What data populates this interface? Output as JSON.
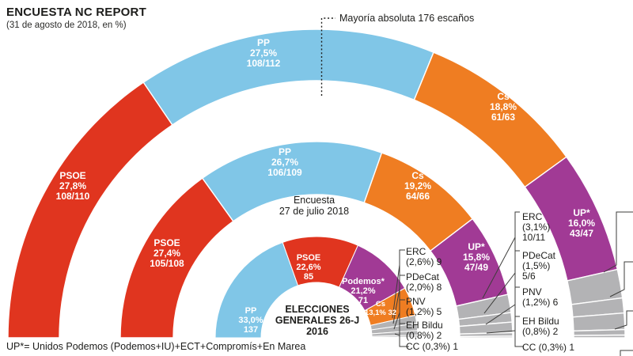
{
  "title": "ENCUESTA NC REPORT",
  "subtitle": "(31 de agosto de 2018, en %)",
  "majority_label": "Mayoría absoluta 176 escaños",
  "footnote": "UP*= Unidos Podemos (Podemos+IU)+ECT+Compromís+En Marea",
  "colors": {
    "psoe": "#e0351f",
    "pp": "#80c6e7",
    "cs": "#ef7d22",
    "up": "#a13a95",
    "podemos": "#a13a95",
    "minor": "#b3b3b5",
    "text": "#1d1d1b"
  },
  "chart_data": {
    "type": "pie",
    "variant": "hemicycle_half_donut",
    "total_seats": 350,
    "majority_seats": 176,
    "rings": [
      {
        "id": "poll-31-agosto",
        "name": "Encuesta 31 de agosto de 2018",
        "position": "outer",
        "center_label_lines": [],
        "segments": [
          {
            "party": "PSOE",
            "pct_label": "27,8%",
            "pct": 27.8,
            "seats_label": "108/110",
            "seats": 109,
            "color": "psoe"
          },
          {
            "party": "PP",
            "pct_label": "27,5%",
            "pct": 27.5,
            "seats_label": "108/112",
            "seats": 110,
            "color": "pp"
          },
          {
            "party": "Cs",
            "pct_label": "18,8%",
            "pct": 18.8,
            "seats_label": "61/63",
            "seats": 62,
            "color": "cs"
          },
          {
            "party": "UP*",
            "pct_label": "16,0%",
            "pct": 16.0,
            "seats_label": "43/47",
            "seats": 45,
            "color": "up"
          },
          {
            "party": "ERC",
            "pct_label": null,
            "seats_label": null,
            "seats": 10.5,
            "color": "minor"
          },
          {
            "party": "PDeCat",
            "pct_label": null,
            "seats_label": null,
            "seats": 5.5,
            "color": "minor"
          },
          {
            "party": "PNV",
            "pct_label": null,
            "seats_label": null,
            "seats": 6,
            "color": "minor"
          },
          {
            "party": "EH Bildu",
            "pct_label": null,
            "seats_label": null,
            "seats": 2,
            "color": "minor"
          },
          {
            "party": "CC",
            "pct_label": null,
            "seats_label": null,
            "seats": 1,
            "color": "minor"
          }
        ]
      },
      {
        "id": "poll-27-julio",
        "name": "Encuesta 27 de julio 2018",
        "position": "middle",
        "center_label_lines": [
          "Encuesta",
          "27 de julio 2018"
        ],
        "segments": [
          {
            "party": "PSOE",
            "pct_label": "27,4%",
            "pct": 27.4,
            "seats_label": "105/108",
            "seats": 106.5,
            "color": "psoe"
          },
          {
            "party": "PP",
            "pct_label": "26,7%",
            "pct": 26.7,
            "seats_label": "106/109",
            "seats": 107.5,
            "color": "pp"
          },
          {
            "party": "Cs",
            "pct_label": "19,2%",
            "pct": 19.2,
            "seats_label": "64/66",
            "seats": 65,
            "color": "cs"
          },
          {
            "party": "UP*",
            "pct_label": "15,8%",
            "pct": 15.8,
            "seats_label": "47/49",
            "seats": 48,
            "color": "up"
          },
          {
            "party": "ERC",
            "pct_label": "(3,1%)",
            "pct": 3.1,
            "seats_label": "10/11",
            "seats": 10.5,
            "color": "minor"
          },
          {
            "party": "PDeCat",
            "pct_label": "(1,5%)",
            "pct": 1.5,
            "seats_label": "5/6",
            "seats": 5.5,
            "color": "minor"
          },
          {
            "party": "PNV",
            "pct_label": "(1,2%)",
            "pct": 1.2,
            "seats_label": "6",
            "seats": 6,
            "color": "minor"
          },
          {
            "party": "EH Bildu",
            "pct_label": "(0,8%)",
            "pct": 0.8,
            "seats_label": "2",
            "seats": 2,
            "color": "minor"
          },
          {
            "party": "CC",
            "pct_label": "(0,3%)",
            "pct": 0.3,
            "seats_label": "1",
            "seats": 1,
            "color": "minor"
          }
        ]
      },
      {
        "id": "elecciones-2016",
        "name": "Elecciones Generales 26-J 2016",
        "position": "inner",
        "center_label_lines": [
          "ELECCIONES",
          "GENERALES 26-J",
          "2016"
        ],
        "segments": [
          {
            "party": "PP",
            "pct_label": "33,0%",
            "pct": 33.0,
            "seats_label": "137",
            "seats": 137,
            "color": "pp"
          },
          {
            "party": "PSOE",
            "pct_label": "22,6%",
            "pct": 22.6,
            "seats_label": "85",
            "seats": 85,
            "color": "psoe"
          },
          {
            "party": "Podemos*",
            "pct_label": "21,2%",
            "pct": 21.2,
            "seats_label": "71",
            "seats": 71,
            "color": "podemos"
          },
          {
            "party": "Cs",
            "pct_label": "13,1%",
            "pct": 13.1,
            "seats_label": "32",
            "seats": 32,
            "color": "cs"
          },
          {
            "party": "ERC",
            "pct_label": "(2,6%)",
            "pct": 2.6,
            "seats_label": "9",
            "seats": 9,
            "color": "minor"
          },
          {
            "party": "PDeCat",
            "pct_label": "(2,0%)",
            "pct": 2.0,
            "seats_label": "8",
            "seats": 8,
            "color": "minor"
          },
          {
            "party": "PNV",
            "pct_label": "(1,2%)",
            "pct": 1.2,
            "seats_label": "5",
            "seats": 5,
            "color": "minor"
          },
          {
            "party": "EH Bildu",
            "pct_label": "(0,8%)",
            "pct": 0.8,
            "seats_label": "2",
            "seats": 2,
            "color": "minor"
          },
          {
            "party": "CC",
            "pct_label": "(0,3%)",
            "pct": 0.3,
            "seats_label": "1",
            "seats": 1,
            "color": "minor"
          }
        ]
      }
    ]
  },
  "callouts": {
    "election_2016": [
      {
        "lines": [
          "ERC",
          "(2,6%) 9"
        ]
      },
      {
        "lines": [
          "PDeCat",
          "(2,0%) 8"
        ]
      },
      {
        "lines": [
          "PNV",
          "(1,2%) 5"
        ]
      },
      {
        "lines": [
          "EH Bildu",
          "(0,8%) 2"
        ]
      },
      {
        "lines": [
          "CC (0,3%) 1"
        ]
      }
    ],
    "poll_julio": [
      {
        "lines": [
          "ERC",
          "(3,1%)",
          "10/11"
        ]
      },
      {
        "lines": [
          "PDeCat",
          "(1,5%)",
          "5/6"
        ]
      },
      {
        "lines": [
          "PNV",
          "(1,2%) 6"
        ]
      },
      {
        "lines": [
          "EH Bildu",
          "(0,8%) 2"
        ]
      },
      {
        "lines": [
          "CC (0,3%) 1"
        ]
      }
    ]
  }
}
